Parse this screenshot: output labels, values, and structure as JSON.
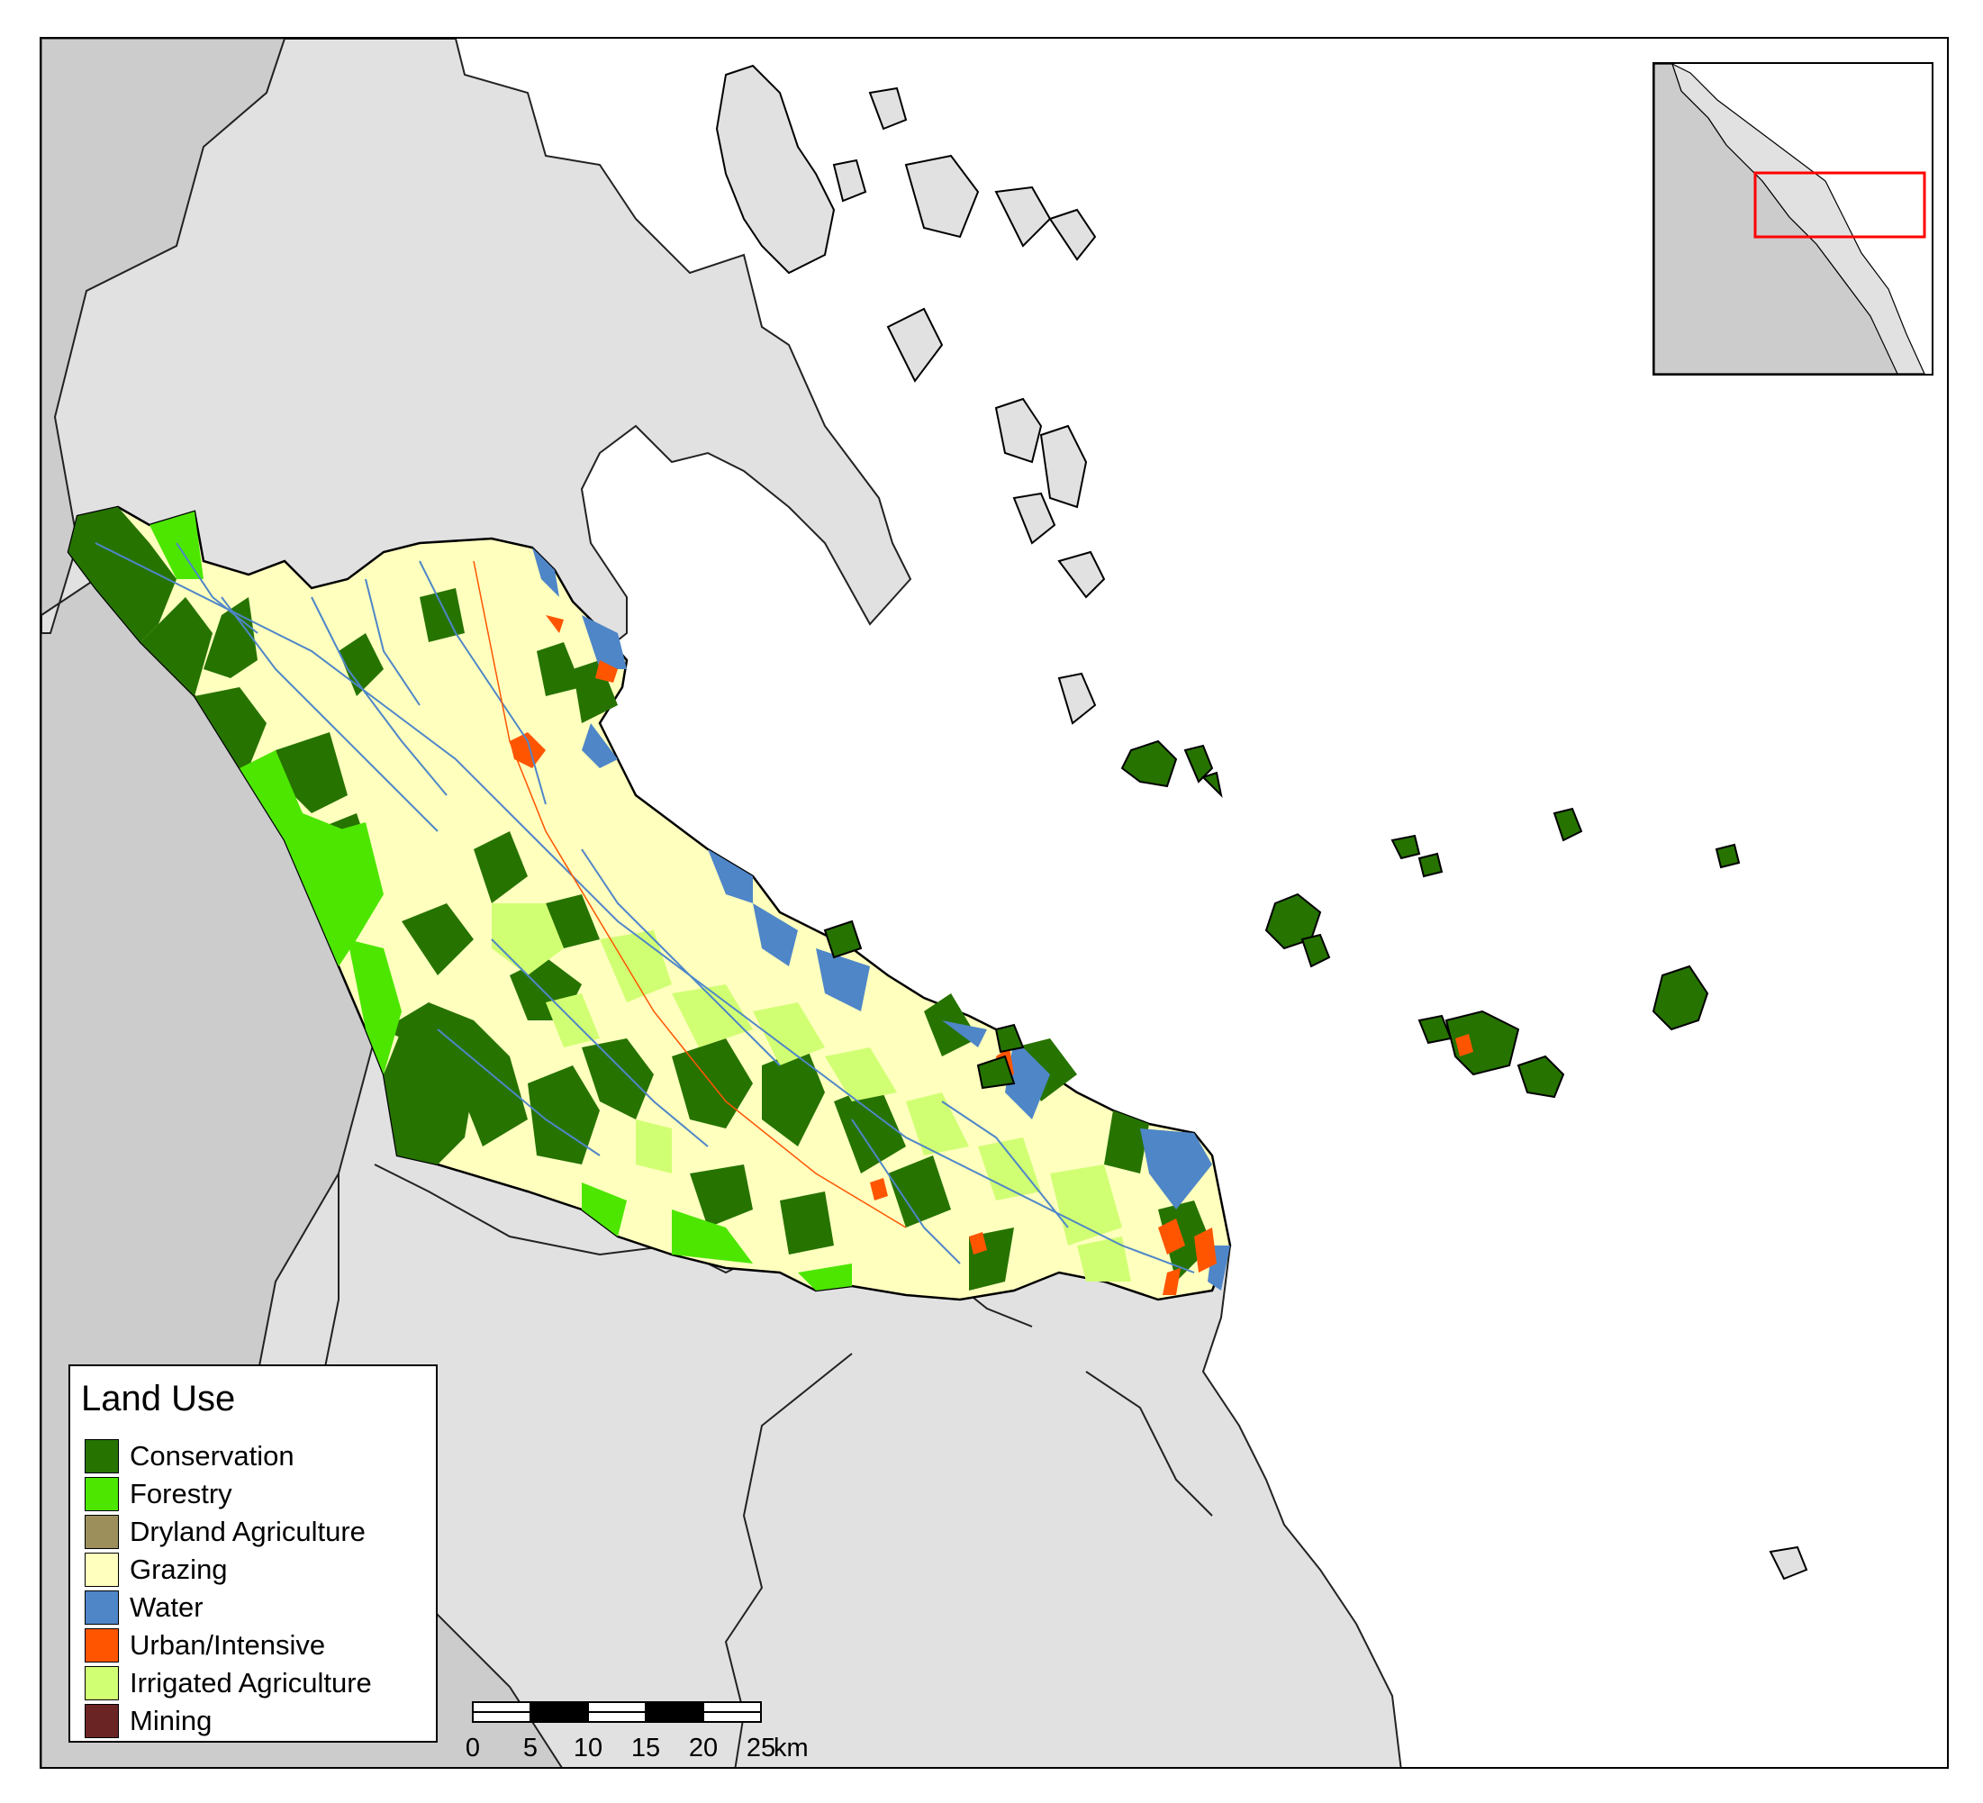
{
  "legend": {
    "title": "Land Use",
    "items": [
      {
        "label": "Conservation",
        "color": "#267300"
      },
      {
        "label": "Forestry",
        "color": "#4ce600"
      },
      {
        "label": "Dryland Agriculture",
        "color": "#9c8f5c"
      },
      {
        "label": "Grazing",
        "color": "#ffffbe"
      },
      {
        "label": "Water",
        "color": "#4e86c8"
      },
      {
        "label": "Urban/Intensive",
        "color": "#ff5500"
      },
      {
        "label": "Irrigated Agriculture",
        "color": "#d1ff73"
      },
      {
        "label": "Mining",
        "color": "#6b2424"
      }
    ]
  },
  "scale_bar": {
    "ticks": [
      "0",
      "5",
      "10",
      "15",
      "20",
      "25"
    ],
    "unit": "km"
  },
  "inset": {
    "extent_box_color": "#ff0000"
  },
  "colors": {
    "land_gray": "#e1e1e1",
    "land_dark_gray": "#cccccc",
    "sea": "#ffffff"
  }
}
